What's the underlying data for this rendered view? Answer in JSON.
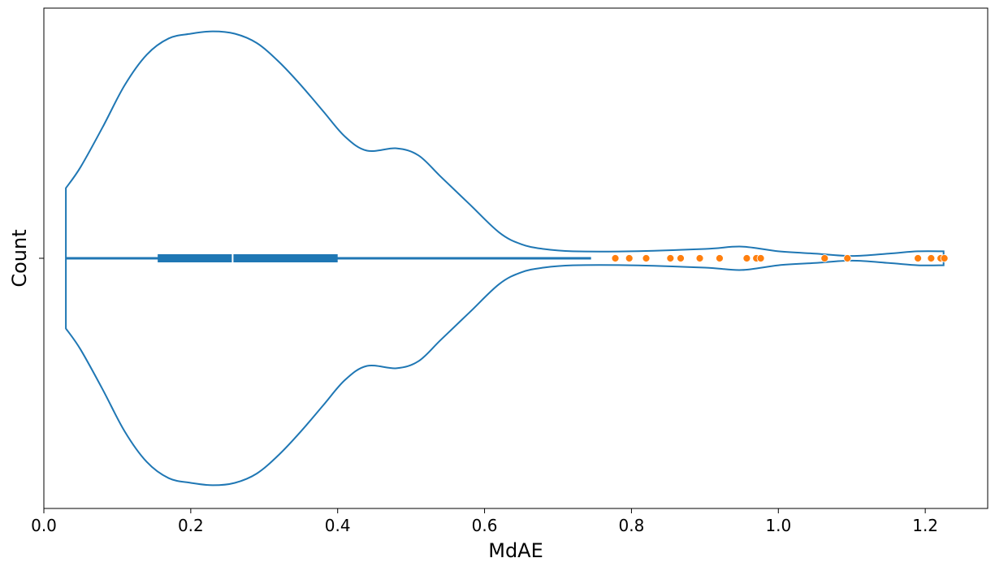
{
  "chart_data": {
    "type": "violin",
    "orientation": "horizontal",
    "xlabel": "MdAE",
    "ylabel": "Count",
    "xlim": [
      0.0,
      1.285
    ],
    "xticks": [
      "0.0",
      "0.2",
      "0.4",
      "0.6",
      "0.8",
      "1.0",
      "1.2"
    ],
    "grid": false,
    "violin": {
      "min": 0.03,
      "max": 1.225,
      "q1": 0.155,
      "median": 0.257,
      "q3": 0.4,
      "whisker_high": 0.745,
      "density_profile": [
        [
          0.03,
          0.3
        ],
        [
          0.05,
          0.39
        ],
        [
          0.08,
          0.56
        ],
        [
          0.11,
          0.74
        ],
        [
          0.14,
          0.87
        ],
        [
          0.17,
          0.94
        ],
        [
          0.2,
          0.96
        ],
        [
          0.23,
          0.97
        ],
        [
          0.26,
          0.96
        ],
        [
          0.29,
          0.92
        ],
        [
          0.32,
          0.84
        ],
        [
          0.35,
          0.74
        ],
        [
          0.38,
          0.63
        ],
        [
          0.41,
          0.52
        ],
        [
          0.44,
          0.46
        ],
        [
          0.48,
          0.47
        ],
        [
          0.51,
          0.44
        ],
        [
          0.54,
          0.35
        ],
        [
          0.58,
          0.23
        ],
        [
          0.62,
          0.11
        ],
        [
          0.65,
          0.06
        ],
        [
          0.68,
          0.04
        ],
        [
          0.72,
          0.03
        ],
        [
          0.8,
          0.03
        ],
        [
          0.9,
          0.04
        ],
        [
          0.95,
          0.05
        ],
        [
          1.0,
          0.03
        ],
        [
          1.05,
          0.02
        ],
        [
          1.1,
          0.01
        ],
        [
          1.15,
          0.02
        ],
        [
          1.19,
          0.03
        ],
        [
          1.225,
          0.03
        ]
      ]
    },
    "outliers": [
      0.778,
      0.797,
      0.82,
      0.853,
      0.867,
      0.893,
      0.92,
      0.957,
      0.97,
      0.976,
      1.063,
      1.094,
      1.19,
      1.208,
      1.221,
      1.226
    ],
    "colors": {
      "violin": "#1f77b4",
      "box": "#1f77b4",
      "median": "#ffffff",
      "points": "#ff7f0e"
    }
  }
}
